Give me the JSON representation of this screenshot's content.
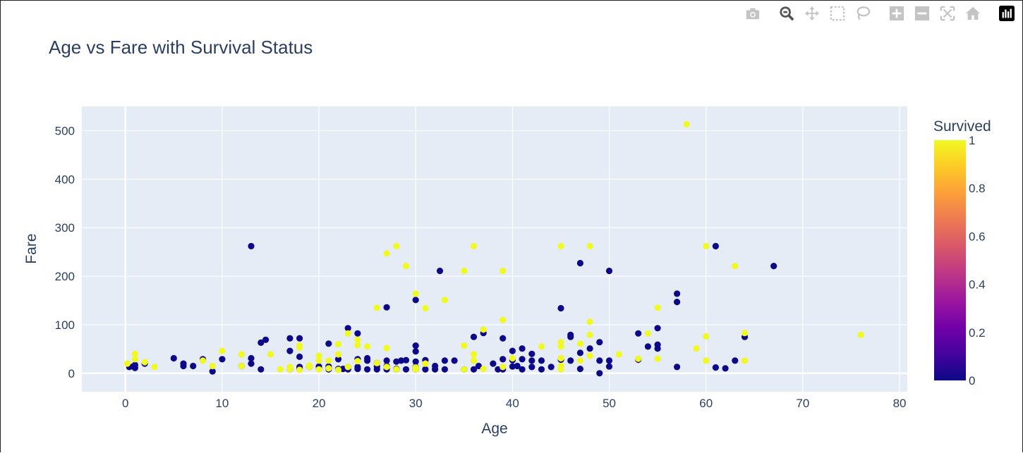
{
  "modebar": {
    "buttons": [
      {
        "icon": "camera-icon"
      },
      {
        "icon": "zoom-icon"
      },
      {
        "icon": "pan-icon"
      },
      {
        "icon": "box-select-icon"
      },
      {
        "icon": "lasso-select-icon"
      },
      {
        "icon": "zoom-in-icon"
      },
      {
        "icon": "zoom-out-icon"
      },
      {
        "icon": "autoscale-icon"
      },
      {
        "icon": "reset-axes-icon"
      },
      {
        "icon": "plotly-logo-icon"
      }
    ]
  },
  "chart_data": {
    "type": "scatter",
    "title": "Age vs Fare with Survival Status",
    "xlabel": "Age",
    "ylabel": "Fare",
    "xlim": [
      -4.5,
      80.8
    ],
    "ylim": [
      -38,
      550
    ],
    "x_ticks": [
      0,
      10,
      20,
      30,
      40,
      50,
      60,
      70,
      80
    ],
    "y_ticks": [
      0,
      100,
      200,
      300,
      400,
      500
    ],
    "grid": true,
    "colorbar": {
      "title": "Survived",
      "ticks": [
        "0",
        "0.2",
        "0.4",
        "0.6",
        "0.8",
        "1"
      ],
      "colors": [
        "#0d0887",
        "#46039f",
        "#7201a8",
        "#9c179e",
        "#bd3786",
        "#d8576b",
        "#ed7953",
        "#fb9f3a",
        "#fdca26",
        "#f0f921"
      ]
    },
    "colors": {
      "died": "#0d0887",
      "survived": "#f0f921",
      "plot_bg": "#e5ecf6",
      "text": "#2a3f5f"
    },
    "points": [
      [
        0.4,
        13,
        0
      ],
      [
        0.8,
        14,
        0
      ],
      [
        1,
        11,
        0
      ],
      [
        1,
        17,
        0
      ],
      [
        2,
        20,
        0
      ],
      [
        5,
        31,
        0
      ],
      [
        6,
        20,
        0
      ],
      [
        6,
        15,
        0
      ],
      [
        7,
        15,
        0
      ],
      [
        8,
        29,
        0
      ],
      [
        9,
        4,
        0
      ],
      [
        10,
        29,
        0
      ],
      [
        12,
        15,
        0
      ],
      [
        13,
        262,
        0
      ],
      [
        13,
        20,
        0
      ],
      [
        13,
        31,
        0
      ],
      [
        14,
        63,
        0
      ],
      [
        14,
        8,
        0
      ],
      [
        14.5,
        69,
        0
      ],
      [
        17,
        72,
        0
      ],
      [
        17,
        46,
        0
      ],
      [
        17,
        8,
        0
      ],
      [
        18,
        72,
        0
      ],
      [
        18,
        13,
        0
      ],
      [
        18,
        8,
        0
      ],
      [
        18,
        34,
        0
      ],
      [
        18,
        11,
        0
      ],
      [
        19,
        13,
        0
      ],
      [
        20,
        9,
        0
      ],
      [
        20,
        14,
        0
      ],
      [
        21,
        61,
        0
      ],
      [
        21,
        8,
        0
      ],
      [
        21,
        11,
        0
      ],
      [
        21,
        14,
        0
      ],
      [
        22,
        8,
        0
      ],
      [
        22,
        9,
        0
      ],
      [
        22,
        29,
        0
      ],
      [
        22.5,
        9,
        0
      ],
      [
        23,
        93,
        0
      ],
      [
        23,
        8,
        0
      ],
      [
        23,
        13,
        0
      ],
      [
        24,
        82,
        0
      ],
      [
        24,
        9,
        0
      ],
      [
        24,
        13,
        0
      ],
      [
        24,
        29,
        0
      ],
      [
        25,
        8,
        0
      ],
      [
        25,
        26,
        0
      ],
      [
        25,
        31,
        0
      ],
      [
        26,
        8,
        0
      ],
      [
        26,
        14,
        0
      ],
      [
        26,
        21,
        0
      ],
      [
        27,
        136,
        0
      ],
      [
        27,
        8,
        0
      ],
      [
        27,
        15,
        0
      ],
      [
        27,
        26,
        0
      ],
      [
        28,
        8,
        0
      ],
      [
        28,
        9,
        0
      ],
      [
        28,
        24,
        0
      ],
      [
        28.5,
        26,
        0
      ],
      [
        29,
        8,
        0
      ],
      [
        29,
        27,
        0
      ],
      [
        30,
        151,
        0
      ],
      [
        30,
        57,
        0
      ],
      [
        30,
        45,
        0
      ],
      [
        30,
        13,
        0
      ],
      [
        30,
        8,
        0
      ],
      [
        30,
        24,
        0
      ],
      [
        31,
        8,
        0
      ],
      [
        31,
        27,
        0
      ],
      [
        32,
        8,
        0
      ],
      [
        32,
        15,
        0
      ],
      [
        32.5,
        211,
        0
      ],
      [
        33,
        8,
        0
      ],
      [
        33,
        26,
        0
      ],
      [
        34,
        26,
        0
      ],
      [
        35,
        8,
        0
      ],
      [
        36,
        75,
        0
      ],
      [
        36,
        8,
        0
      ],
      [
        36.5,
        15,
        0
      ],
      [
        37,
        83,
        0
      ],
      [
        38,
        20,
        0
      ],
      [
        38.5,
        8,
        0
      ],
      [
        39,
        72,
        0
      ],
      [
        39,
        8,
        0
      ],
      [
        39,
        29,
        0
      ],
      [
        40,
        46,
        0
      ],
      [
        40,
        14,
        0
      ],
      [
        40,
        27,
        0
      ],
      [
        40.5,
        15,
        0
      ],
      [
        41,
        51,
        0
      ],
      [
        41,
        8,
        0
      ],
      [
        41,
        29,
        0
      ],
      [
        42,
        40,
        0
      ],
      [
        42,
        13,
        0
      ],
      [
        42,
        26,
        0
      ],
      [
        43,
        8,
        0
      ],
      [
        43,
        26,
        0
      ],
      [
        44,
        13,
        0
      ],
      [
        45,
        134,
        0
      ],
      [
        45,
        28,
        0
      ],
      [
        46,
        79,
        0
      ],
      [
        46,
        75,
        0
      ],
      [
        46,
        26,
        0
      ],
      [
        47,
        227,
        0
      ],
      [
        47,
        42,
        0
      ],
      [
        47,
        9,
        0
      ],
      [
        48,
        51,
        0
      ],
      [
        49,
        64,
        0
      ],
      [
        49,
        26,
        0
      ],
      [
        49,
        0,
        0
      ],
      [
        50,
        211,
        0
      ],
      [
        50,
        26,
        0
      ],
      [
        50,
        14,
        0
      ],
      [
        53,
        82,
        0
      ],
      [
        53,
        28,
        0
      ],
      [
        54,
        55,
        0
      ],
      [
        55,
        93,
        0
      ],
      [
        55,
        51,
        0
      ],
      [
        55,
        59,
        0
      ],
      [
        57,
        164,
        0
      ],
      [
        57,
        147,
        0
      ],
      [
        57,
        13,
        0
      ],
      [
        61,
        262,
        0
      ],
      [
        61,
        12,
        0
      ],
      [
        62,
        10,
        0
      ],
      [
        63,
        26,
        0
      ],
      [
        64,
        75,
        0
      ],
      [
        67,
        221,
        0
      ],
      [
        0.2,
        20,
        1
      ],
      [
        1,
        40,
        1
      ],
      [
        1,
        29,
        1
      ],
      [
        2,
        23,
        1
      ],
      [
        3,
        13,
        1
      ],
      [
        8,
        26,
        1
      ],
      [
        9,
        15,
        1
      ],
      [
        10,
        46,
        1
      ],
      [
        12,
        39,
        1
      ],
      [
        12,
        15,
        1
      ],
      [
        15,
        39,
        1
      ],
      [
        16,
        8,
        1
      ],
      [
        17,
        8,
        1
      ],
      [
        17,
        13,
        1
      ],
      [
        18,
        53,
        1
      ],
      [
        18,
        57,
        1
      ],
      [
        18,
        7,
        1
      ],
      [
        19,
        13,
        1
      ],
      [
        19,
        16,
        1
      ],
      [
        20,
        36,
        1
      ],
      [
        20,
        8,
        1
      ],
      [
        20,
        26,
        1
      ],
      [
        21,
        26,
        1
      ],
      [
        21,
        10,
        1
      ],
      [
        22,
        60,
        1
      ],
      [
        22,
        39,
        1
      ],
      [
        22,
        7,
        1
      ],
      [
        23,
        82,
        1
      ],
      [
        23,
        13,
        1
      ],
      [
        24,
        69,
        1
      ],
      [
        24,
        58,
        1
      ],
      [
        24,
        25,
        1
      ],
      [
        25,
        55,
        1
      ],
      [
        26,
        135,
        1
      ],
      [
        26,
        21,
        1
      ],
      [
        27,
        247,
        1
      ],
      [
        27,
        52,
        1
      ],
      [
        27,
        13,
        1
      ],
      [
        28,
        262,
        1
      ],
      [
        28,
        8,
        1
      ],
      [
        29,
        221,
        1
      ],
      [
        30,
        164,
        1
      ],
      [
        30,
        12,
        1
      ],
      [
        30,
        8,
        1
      ],
      [
        31,
        134,
        1
      ],
      [
        31,
        20,
        1
      ],
      [
        33,
        151,
        1
      ],
      [
        35,
        211,
        1
      ],
      [
        35,
        57,
        1
      ],
      [
        35,
        8,
        1
      ],
      [
        36,
        262,
        1
      ],
      [
        36,
        39,
        1
      ],
      [
        36,
        26,
        1
      ],
      [
        37,
        90,
        1
      ],
      [
        37,
        9,
        1
      ],
      [
        39,
        211,
        1
      ],
      [
        39,
        110,
        1
      ],
      [
        39,
        13,
        1
      ],
      [
        40,
        31,
        1
      ],
      [
        43,
        55,
        1
      ],
      [
        45,
        262,
        1
      ],
      [
        45,
        64,
        1
      ],
      [
        45,
        55,
        1
      ],
      [
        45,
        31,
        1
      ],
      [
        45,
        15,
        1
      ],
      [
        45,
        8,
        1
      ],
      [
        47,
        61,
        1
      ],
      [
        47,
        26,
        1
      ],
      [
        48,
        262,
        1
      ],
      [
        48,
        106,
        1
      ],
      [
        48,
        79,
        1
      ],
      [
        48,
        36,
        1
      ],
      [
        51,
        39,
        1
      ],
      [
        53,
        30,
        1
      ],
      [
        54,
        82,
        1
      ],
      [
        55,
        135,
        1
      ],
      [
        55,
        30,
        1
      ],
      [
        58,
        513,
        1
      ],
      [
        59,
        51,
        1
      ],
      [
        60,
        262,
        1
      ],
      [
        60,
        76,
        1
      ],
      [
        60,
        26,
        1
      ],
      [
        63,
        221,
        1
      ],
      [
        64,
        83,
        1
      ],
      [
        64,
        26,
        1
      ],
      [
        76,
        79,
        1
      ]
    ]
  }
}
